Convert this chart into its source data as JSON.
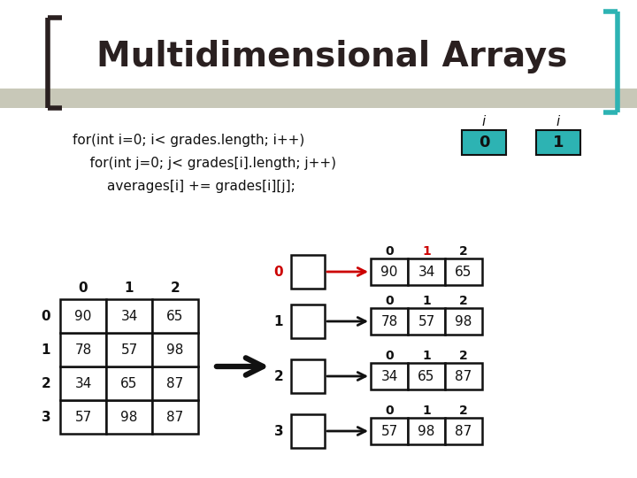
{
  "title": "Multidimensional Arrays",
  "bg_color": "#ffffff",
  "teal_color": "#2db3b3",
  "title_color": "#2a2020",
  "code_lines": [
    "for(int i=0; i< grades.length; i++)",
    "    for(int j=0; j< grades[i].length; j++)",
    "        averages[i] += grades[i][j];"
  ],
  "matrix": [
    [
      90,
      34,
      65
    ],
    [
      78,
      57,
      98
    ],
    [
      34,
      65,
      87
    ],
    [
      57,
      98,
      87
    ]
  ],
  "stripe_color": "#c8c8b8",
  "bracket_left_color": "#2a2020",
  "bracket_right_color": "#2db3b3",
  "arrow_main_color": "#111111",
  "arrow_red_color": "#cc0000",
  "cell_border": "#111111",
  "text_color": "#111111",
  "red_color": "#cc0000"
}
